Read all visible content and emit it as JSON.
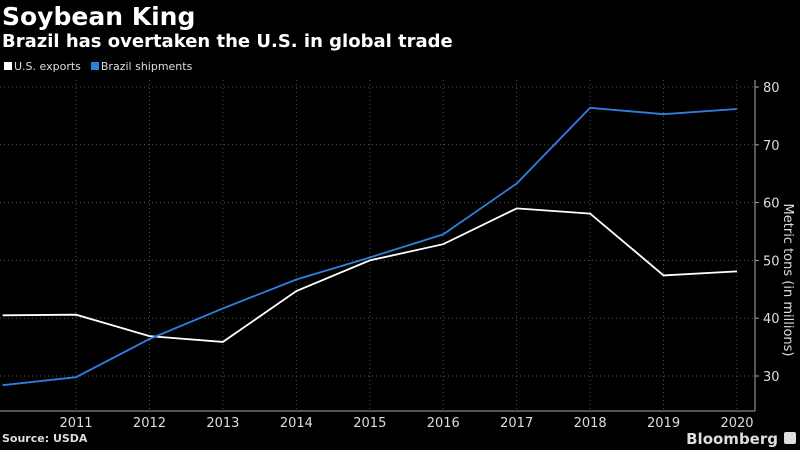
{
  "title": "Soybean King",
  "subtitle": "Brazil has overtaken the U.S. in global trade",
  "source": "Source: USDA",
  "brand": "Bloomberg",
  "chart_data": {
    "type": "line",
    "title": "Soybean King",
    "subtitle": "Brazil has overtaken the U.S. in global trade",
    "x": [
      2010,
      2011,
      2012,
      2013,
      2014,
      2015,
      2016,
      2017,
      2018,
      2019,
      2020
    ],
    "x_tick_labels": [
      "2011",
      "2012",
      "2013",
      "2014",
      "2015",
      "2016",
      "2017",
      "2018",
      "2019",
      "2020"
    ],
    "y_ticks": [
      30,
      40,
      50,
      60,
      70,
      80
    ],
    "y_tick_labels": [
      "30",
      "40",
      "50",
      "60",
      "70",
      "80"
    ],
    "ylabel": "Metric tons (in millions)",
    "ylim": [
      24,
      81
    ],
    "xlim": [
      2010,
      2020
    ],
    "y_axis_side": "right",
    "grid": true,
    "legend_placement": "top-left",
    "series": [
      {
        "name": "U.S. exports",
        "color": "#ffffff",
        "values": [
          40.5,
          40.6,
          36.9,
          35.9,
          44.7,
          50.0,
          52.8,
          59.0,
          58.1,
          47.4,
          48.1
        ]
      },
      {
        "name": "Brazil shipments",
        "color": "#2f7fe0",
        "values": [
          28.4,
          29.8,
          36.4,
          41.7,
          46.7,
          50.5,
          54.5,
          63.3,
          76.4,
          75.3,
          76.2
        ]
      }
    ]
  }
}
